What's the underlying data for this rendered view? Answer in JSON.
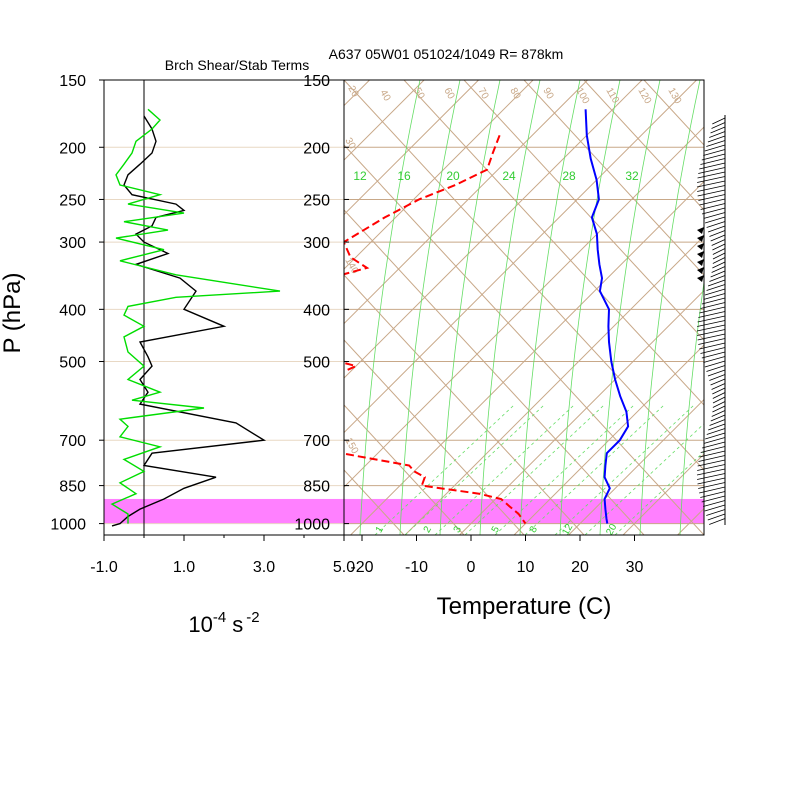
{
  "header": {
    "left_title": "Brch Shear/Stab Terms",
    "right_title": "A637 05W01 051024/1049 R= 878km"
  },
  "colors": {
    "shear": "#000000",
    "stability": "#00dd00",
    "temperature": "#0000ff",
    "dewpoint": "#ff0000",
    "grid": "#c8a888",
    "mixing": "#00cc00",
    "highlight": "#ff80ff"
  },
  "chart_data": [
    {
      "type": "line",
      "xlabel": "10",
      "xlabel_exp": "-4",
      "xlabel_unit": "s",
      "xlabel_unit_exp": "-2",
      "ylabel": "P (hPa)",
      "y_scale": "log",
      "ylim": [
        1050,
        150
      ],
      "xlim": [
        -1,
        5
      ],
      "xticks": [
        -1.0,
        1.0,
        3.0,
        5.0
      ],
      "xtick_labels": [
        "-1.0",
        "1.0",
        "3.0",
        "5.0"
      ],
      "yticks": [
        150,
        200,
        250,
        300,
        400,
        500,
        700,
        850,
        1000
      ],
      "highlight_band_p": [
        900,
        1000
      ],
      "series": [
        {
          "key": "shear",
          "p": [
            175,
            185,
            195,
            205,
            215,
            225,
            235,
            245,
            255,
            262,
            270,
            280,
            290,
            300,
            315,
            330,
            350,
            370,
            400,
            430,
            460,
            490,
            510,
            540,
            570,
            600,
            650,
            700,
            740,
            780,
            820,
            860,
            900,
            940,
            970,
            1000,
            1010
          ],
          "v": [
            0.0,
            0.2,
            0.3,
            0.2,
            -0.1,
            -0.4,
            -0.5,
            -0.3,
            0.8,
            1.0,
            0.3,
            0.2,
            -0.2,
            0.0,
            0.6,
            -0.2,
            0.9,
            1.3,
            1.0,
            2.0,
            -0.1,
            0.1,
            0.2,
            -0.1,
            0.1,
            -0.1,
            2.3,
            3.0,
            0.2,
            0.0,
            1.8,
            1.0,
            0.5,
            -0.1,
            -0.4,
            -0.6,
            -0.8
          ]
        },
        {
          "key": "stability",
          "p": [
            170,
            178,
            185,
            195,
            205,
            215,
            225,
            235,
            245,
            255,
            265,
            275,
            285,
            295,
            310,
            325,
            345,
            370,
            380,
            395,
            410,
            430,
            450,
            480,
            510,
            540,
            570,
            590,
            610,
            640,
            660,
            690,
            720,
            760,
            800,
            840,
            880,
            920,
            960,
            1000
          ],
          "v": [
            0.1,
            0.4,
            0.2,
            -0.2,
            -0.3,
            -0.5,
            -0.7,
            -0.6,
            0.4,
            -0.4,
            1.0,
            -0.5,
            0.6,
            -0.7,
            0.5,
            -0.6,
            0.8,
            3.4,
            0.8,
            -0.4,
            -0.5,
            0.0,
            -0.5,
            -0.4,
            0.0,
            -0.4,
            0.4,
            -0.3,
            1.5,
            -0.6,
            -0.4,
            -0.6,
            0.4,
            -0.5,
            0.0,
            -0.6,
            -0.2,
            -0.8,
            -0.4,
            -0.4
          ]
        }
      ]
    },
    {
      "type": "line",
      "subtype": "skew-t",
      "xlabel": "Temperature (C)",
      "y_scale": "log",
      "ylim": [
        1050,
        150
      ],
      "xticks": [
        -20,
        -10,
        0,
        10,
        20,
        30
      ],
      "yticks": [
        150,
        200,
        250,
        300,
        400,
        500,
        700,
        850,
        1000
      ],
      "highlight_band_p": [
        900,
        1000
      ],
      "isotherm_labels": [
        "20",
        "30",
        "40",
        "50",
        "60",
        "70",
        "80",
        "90",
        "100",
        "110",
        "120",
        "130",
        "140",
        "150"
      ],
      "mixing_ratio_labels": [
        "12",
        "16",
        "20",
        "24",
        "28",
        "32"
      ],
      "mixing_ratio_bottom_labels": [
        "1",
        "2",
        "3",
        "5",
        "8",
        "12",
        "20"
      ],
      "series": [
        {
          "key": "temperature",
          "p": [
            170,
            190,
            210,
            230,
            250,
            270,
            290,
            310,
            330,
            350,
            370,
            400,
            430,
            460,
            500,
            540,
            580,
            620,
            660,
            700,
            740,
            780,
            820,
            860,
            900,
            940,
            980,
            1000
          ],
          "t": [
            -55,
            -50,
            -45,
            -40,
            -36,
            -34,
            -30,
            -27,
            -24,
            -21,
            -19,
            -14,
            -11,
            -8,
            -4,
            0,
            4,
            8,
            11,
            12,
            12,
            14,
            16,
            19,
            20,
            22,
            24,
            25
          ]
        },
        {
          "key": "dewpoint",
          "p": [
            190,
            205,
            220,
            235,
            250,
            270,
            300,
            320,
            335,
            350,
            370,
            390,
            410,
            430,
            450,
            470,
            490,
            510,
            530,
            560,
            590,
            620,
            650,
            680,
            700,
            720,
            750,
            780,
            800,
            820,
            850,
            880,
            900,
            930,
            960,
            1000
          ],
          "t": [
            -66,
            -64,
            -62,
            -65,
            -69,
            -72,
            -75,
            -71,
            -66,
            -71,
            -76,
            -74,
            -68,
            -73,
            -62,
            -57,
            -58,
            -50,
            -52,
            -51,
            -50,
            -51,
            -57,
            -57,
            -51,
            -44,
            -33,
            -22,
            -20,
            -17,
            -16,
            -4,
            1,
            4,
            7,
            10
          ]
        }
      ]
    }
  ]
}
